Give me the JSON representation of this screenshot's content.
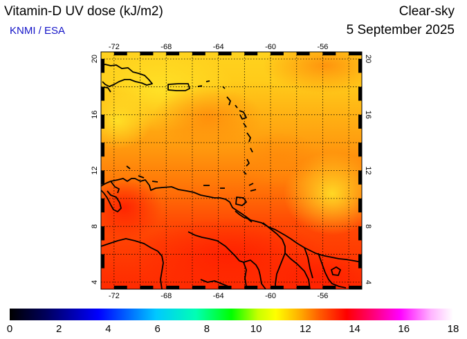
{
  "header": {
    "title": "Vitamin-D UV dose (kJ/m2)",
    "credit": "KNMI / ESA",
    "mode": "Clear-sky",
    "date": "5 September 2025"
  },
  "map": {
    "region": "Caribbean Sea",
    "longitude_range": [
      -73,
      -53
    ],
    "latitude_range": [
      3.5,
      20.5
    ],
    "gridline_longitudes": [
      -72,
      -70,
      -68,
      -66,
      -64,
      -62,
      -60,
      -58,
      -56,
      -54
    ],
    "gridline_latitudes": [
      4,
      6,
      8,
      10,
      12,
      14,
      16,
      18,
      20
    ],
    "lon_tick_labels": [
      "-72",
      "-68",
      "-64",
      "-60",
      "-56"
    ],
    "lat_tick_labels": [
      "4",
      "8",
      "12",
      "16",
      "20"
    ],
    "gridlines": "dotted"
  },
  "colorbar": {
    "min": 0,
    "max": 18,
    "tick_labels": [
      "0",
      "2",
      "4",
      "6",
      "8",
      "10",
      "12",
      "14",
      "16",
      "18"
    ],
    "colors": [
      "#000000",
      "#00005a",
      "#0000ff",
      "#00b4ff",
      "#00ffb4",
      "#00ff00",
      "#b4ff00",
      "#ffff00",
      "#ffb400",
      "#ff5a00",
      "#ff0000",
      "#ff0078",
      "#ff00ff",
      "#ffb4ff",
      "#ffffff"
    ]
  }
}
